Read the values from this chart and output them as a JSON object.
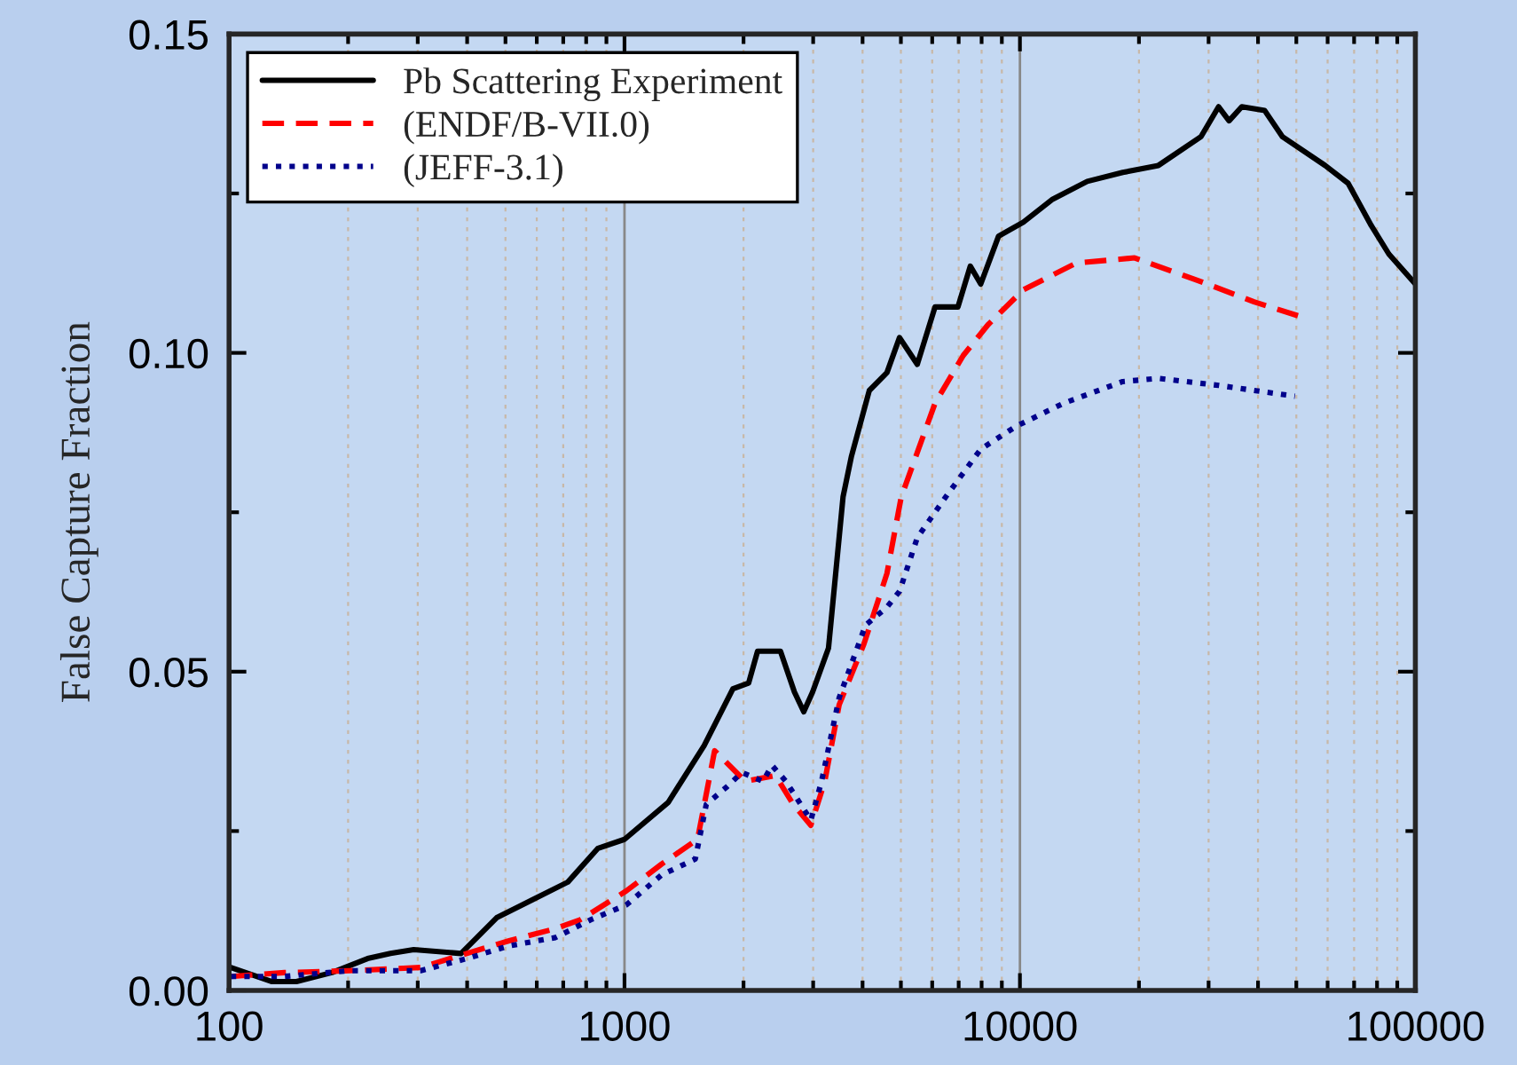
{
  "chart_data": {
    "type": "line",
    "ylabel": "False Capture Fraction",
    "log": "x",
    "xlim": [
      100,
      100000
    ],
    "xticks": [
      100,
      1000,
      10000,
      100000
    ],
    "ylim": [
      0,
      0.15
    ],
    "yticks": [
      {
        "value": 0,
        "label": "0.00"
      },
      {
        "value": 0.05,
        "label": "0.05"
      },
      {
        "value": 0.1,
        "label": "0.10"
      },
      {
        "value": 0.15,
        "label": "0.15"
      }
    ],
    "grid": "x",
    "legend": "top left",
    "series": [
      {
        "name": "Pb Scattering Experiment",
        "color": "#000000",
        "line_style": "solid",
        "x": [
          101,
          128,
          148,
          182,
          224,
          256,
          293,
          386,
          475,
          584,
          719,
          857,
          1000,
          1290,
          1590,
          1880,
          2060,
          2170,
          2480,
          2690,
          2840,
          2990,
          3280,
          3570,
          3750,
          4160,
          4610,
          4960,
          5500,
          6100,
          6970,
          7490,
          7960,
          8830,
          10200,
          12100,
          14800,
          18200,
          22400,
          28700,
          31800,
          33800,
          36400,
          41600,
          46100,
          59100,
          67600,
          77300,
          85700,
          100000
        ],
        "values": [
          0.0036,
          0.0014,
          0.0014,
          0.0028,
          0.005,
          0.0058,
          0.0064,
          0.0058,
          0.0114,
          0.0142,
          0.017,
          0.0223,
          0.0237,
          0.0295,
          0.0384,
          0.0473,
          0.0482,
          0.0532,
          0.0532,
          0.0468,
          0.0437,
          0.0468,
          0.0537,
          0.0774,
          0.0838,
          0.0941,
          0.0969,
          0.1024,
          0.0982,
          0.1072,
          0.1072,
          0.1136,
          0.1108,
          0.1183,
          0.1205,
          0.1241,
          0.1269,
          0.1283,
          0.1294,
          0.1339,
          0.1386,
          0.1364,
          0.1386,
          0.138,
          0.1339,
          0.1294,
          0.1266,
          0.12,
          0.1155,
          0.1108
        ]
      },
      {
        "name": "(ENDF/B-VII.0)",
        "color": "#ff0000",
        "line_style": "dashed",
        "x": [
          101,
          138,
          202,
          305,
          399,
          511,
          669,
          773,
          1010,
          1240,
          1530,
          1690,
          2020,
          2410,
          2670,
          2960,
          3210,
          3490,
          4030,
          4610,
          5010,
          6100,
          7190,
          8300,
          10200,
          13900,
          19500,
          27500,
          39100,
          50600
        ],
        "values": [
          0.0022,
          0.0028,
          0.0031,
          0.0036,
          0.0058,
          0.0078,
          0.0097,
          0.0111,
          0.0156,
          0.0198,
          0.0237,
          0.0376,
          0.0328,
          0.0337,
          0.0292,
          0.0259,
          0.0328,
          0.0448,
          0.0543,
          0.0654,
          0.0774,
          0.0921,
          0.0996,
          0.1044,
          0.1099,
          0.1141,
          0.1149,
          0.1116,
          0.108,
          0.1058
        ]
      },
      {
        "name": "(JEFF-3.1)",
        "color": "#00008b",
        "line_style": "dotted",
        "x": [
          101,
          138,
          202,
          305,
          399,
          511,
          669,
          822,
          1010,
          1240,
          1510,
          1610,
          1820,
          1980,
          2240,
          2360,
          2560,
          2960,
          3150,
          3490,
          4070,
          4610,
          4960,
          5500,
          6490,
          7960,
          9790,
          12900,
          18200,
          22400,
          31800,
          49600
        ],
        "values": [
          0.0022,
          0.0022,
          0.0031,
          0.0031,
          0.005,
          0.007,
          0.0083,
          0.0111,
          0.0134,
          0.0181,
          0.0206,
          0.0292,
          0.032,
          0.0342,
          0.0328,
          0.0353,
          0.0328,
          0.0267,
          0.0328,
          0.0459,
          0.0573,
          0.0601,
          0.0626,
          0.071,
          0.0774,
          0.0849,
          0.0885,
          0.0921,
          0.0955,
          0.096,
          0.0949,
          0.0932
        ]
      }
    ]
  }
}
